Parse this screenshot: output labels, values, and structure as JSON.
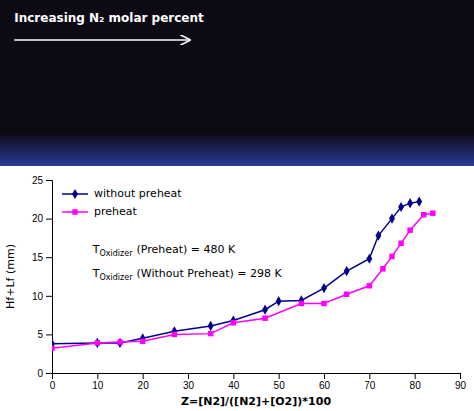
{
  "chart_data": {
    "type": "line",
    "xlabel": "Z=[N2]/([N2]+[O2])*100",
    "ylabel": "Hf+Lf (mm)",
    "xlim": [
      0,
      90
    ],
    "ylim": [
      0,
      25
    ],
    "xticks": [
      0,
      10,
      20,
      30,
      40,
      50,
      60,
      70,
      80,
      90
    ],
    "yticks": [
      0,
      5,
      10,
      15,
      20,
      25
    ],
    "legend": "top-left",
    "grid": false,
    "annotations": [
      "Increasing N₂ molar percent",
      "T",
      "Oxidizer",
      "(Preheat) = 480 K",
      "T",
      "Oxidizer",
      "(Without Preheat) = 298 K"
    ],
    "series": [
      {
        "name": "without preheat",
        "color": "#00008B",
        "marker": "diamond",
        "x": [
          0,
          10,
          15,
          20,
          27,
          35,
          40,
          47,
          50,
          55,
          60,
          65,
          70,
          72,
          75,
          77,
          79,
          81
        ],
        "values": [
          3.8,
          3.9,
          3.9,
          4.5,
          5.4,
          6.1,
          6.8,
          8.2,
          9.3,
          9.4,
          11.0,
          13.2,
          14.8,
          17.8,
          20.0,
          21.5,
          22.0,
          22.2
        ]
      },
      {
        "name": "preheat",
        "color": "#FF00FF",
        "marker": "square",
        "x": [
          0,
          10,
          15,
          20,
          27,
          35,
          40,
          47,
          55,
          60,
          65,
          70,
          73,
          75,
          77,
          79,
          82,
          84
        ],
        "values": [
          3.2,
          3.9,
          4.0,
          4.1,
          5.0,
          5.1,
          6.5,
          7.1,
          9.0,
          9.0,
          10.2,
          11.3,
          13.5,
          15.1,
          16.8,
          18.5,
          20.5,
          20.7
        ]
      }
    ]
  }
}
